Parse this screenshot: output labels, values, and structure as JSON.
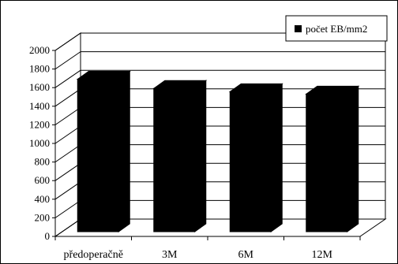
{
  "chart_data": {
    "type": "bar",
    "style": "3d-column",
    "categories": [
      "předoperačně",
      "3M",
      "6M",
      "12M"
    ],
    "series": [
      {
        "name": "počet EB/mm2",
        "color": "#000000",
        "values": [
          1640,
          1540,
          1505,
          1480
        ]
      }
    ],
    "ylim": [
      0,
      2000
    ],
    "ytick_step": 200,
    "yticks": [
      "0",
      "200",
      "400",
      "600",
      "800",
      "1000",
      "1200",
      "1400",
      "1600",
      "1800",
      "2000"
    ],
    "grid": true,
    "legend_position": "top-right"
  }
}
